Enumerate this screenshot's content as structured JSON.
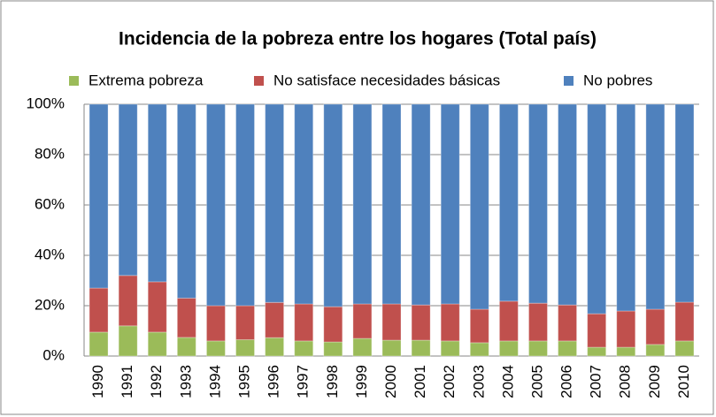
{
  "chart_data": {
    "type": "stacked_bar",
    "title": "Incidencia de la pobreza entre los hogares (Total país)",
    "categories": [
      "1990",
      "1991",
      "1992",
      "1993",
      "1994",
      "1995",
      "1996",
      "1997",
      "1998",
      "1999",
      "2000",
      "2001",
      "2002",
      "2003",
      "2004",
      "2005",
      "2006",
      "2007",
      "2008",
      "2009",
      "2010"
    ],
    "series": [
      {
        "name": "Extrema pobreza",
        "color": "#9bbb59",
        "values": [
          9.5,
          12,
          9.5,
          7.4,
          6,
          6.5,
          7.3,
          6,
          5.6,
          7,
          6.3,
          6.3,
          6,
          5.3,
          6,
          6,
          6,
          3.5,
          3.5,
          4.6,
          6
        ]
      },
      {
        "name": "No satisface necesidades básicas",
        "color": "#c0504d",
        "values": [
          17.5,
          20,
          20,
          15.6,
          14,
          13.5,
          14,
          14.7,
          14,
          13.7,
          14.4,
          14,
          14.7,
          13.3,
          15.8,
          15,
          14.3,
          13.3,
          14.4,
          14,
          15.4
        ]
      },
      {
        "name": "No pobres",
        "color": "#4f81bd",
        "values": [
          73,
          68,
          70.5,
          77,
          80,
          80,
          78.7,
          79.3,
          80.4,
          79.3,
          79.3,
          79.7,
          79.3,
          81.4,
          78.2,
          79,
          79.7,
          83.2,
          82.1,
          81.4,
          78.6
        ]
      }
    ],
    "ylim": [
      0,
      100
    ],
    "yticks": [
      {
        "value": 0,
        "label": "0%"
      },
      {
        "value": 20,
        "label": "20%"
      },
      {
        "value": 40,
        "label": "40%"
      },
      {
        "value": 60,
        "label": "60%"
      },
      {
        "value": 80,
        "label": "80%"
      },
      {
        "value": 100,
        "label": "100%"
      }
    ],
    "grid": true,
    "legend": "top"
  }
}
